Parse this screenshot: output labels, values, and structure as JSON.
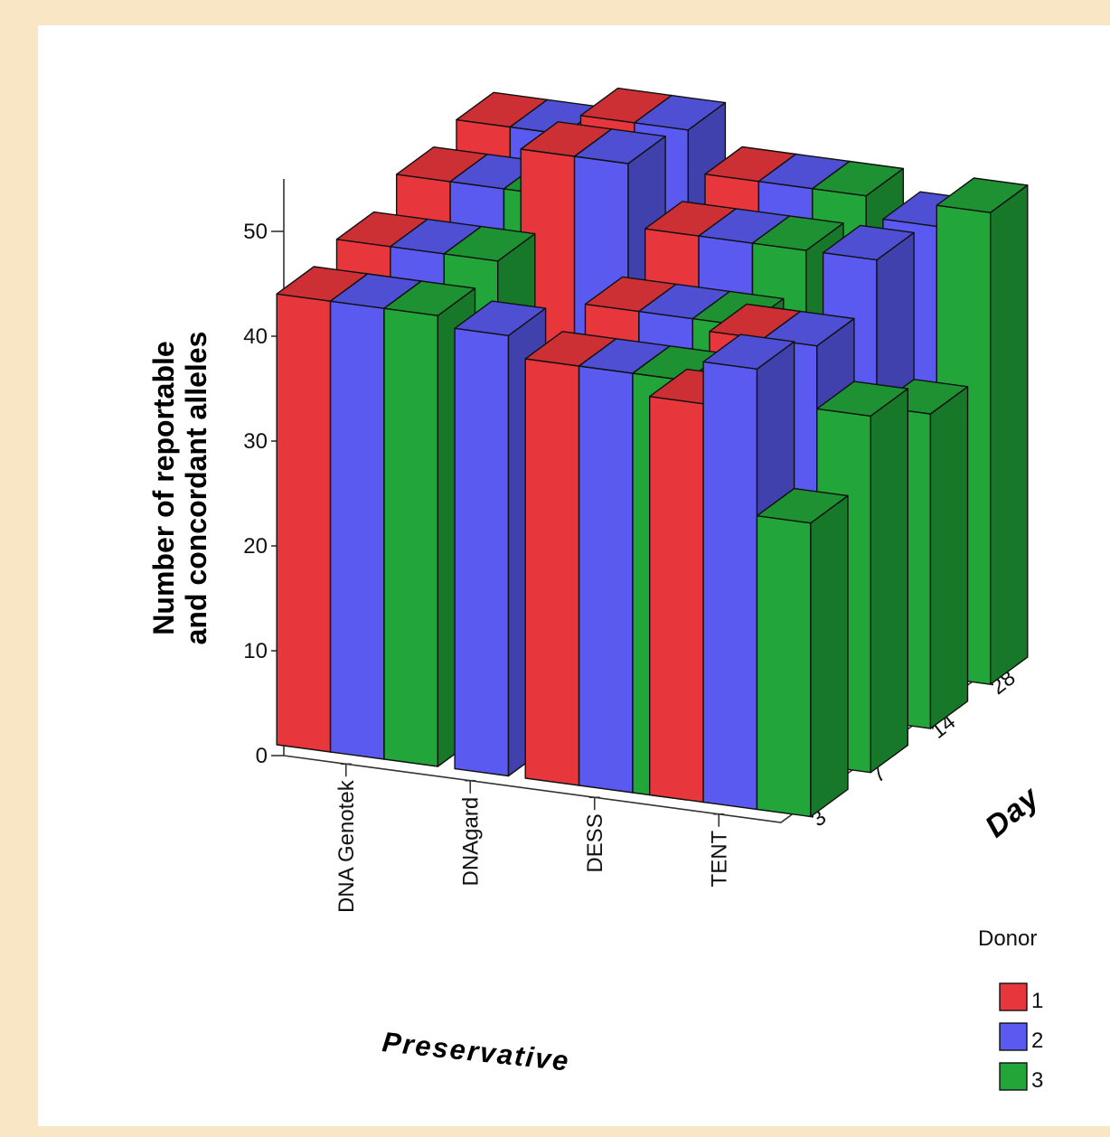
{
  "chart_data": {
    "type": "bar",
    "dimension": "3d",
    "ylabel_lines": [
      "Number of reportable",
      "and concordant alleles"
    ],
    "xlabel": "Preservative",
    "zlabel": "Day",
    "categories": [
      "DNA Genotek",
      "DNAgard",
      "DESS",
      "TENT"
    ],
    "days": [
      "3",
      "7",
      "14",
      "28"
    ],
    "yticks": [
      0,
      10,
      20,
      30,
      40,
      50
    ],
    "ylim": [
      0,
      55
    ],
    "legend": {
      "title": "Donor",
      "placement": "bottom-right"
    },
    "series": [
      {
        "name": "1",
        "color": "#e8373c",
        "values": [
          [
            43,
            44,
            46,
            47
          ],
          [
            0,
            0,
            50,
            49
          ],
          [
            40,
            41,
            44,
            45
          ],
          [
            38,
            40,
            0,
            0
          ]
        ]
      },
      {
        "name": "2",
        "color": "#5a5af0",
        "values": [
          [
            43,
            44,
            46,
            47
          ],
          [
            42,
            0,
            50,
            49
          ],
          [
            40,
            41,
            44,
            45
          ],
          [
            42,
            40,
            44,
            43
          ]
        ]
      },
      {
        "name": "3",
        "color": "#22a63a",
        "values": [
          [
            43,
            44,
            46,
            47
          ],
          [
            0,
            0,
            0,
            0
          ],
          [
            40,
            41,
            44,
            45
          ],
          [
            28,
            34,
            30,
            45
          ]
        ]
      }
    ]
  }
}
